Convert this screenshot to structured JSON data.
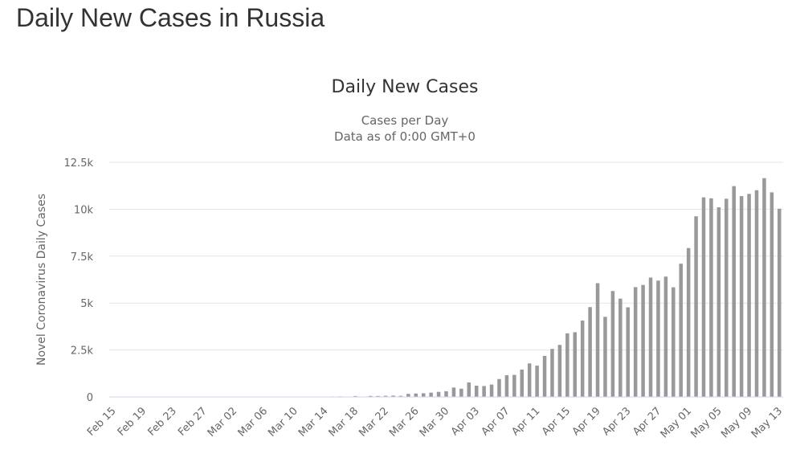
{
  "page": {
    "title": "Daily New Cases in Russia"
  },
  "chart_data": {
    "type": "bar",
    "title": "Daily New Cases",
    "subtitle_lines": [
      "Cases per Day",
      "Data as of 0:00 GMT+0"
    ],
    "xlabel": "",
    "ylabel": "Novel Coronavirus Daily Cases",
    "ylim": [
      0,
      12500
    ],
    "y_ticks": [
      {
        "value": 0,
        "label": "0"
      },
      {
        "value": 2500,
        "label": "2.5k"
      },
      {
        "value": 5000,
        "label": "5k"
      },
      {
        "value": 7500,
        "label": "7.5k"
      },
      {
        "value": 10000,
        "label": "10k"
      },
      {
        "value": 12500,
        "label": "12.5k"
      }
    ],
    "x_tick_labels": [
      "Feb 15",
      "Feb 19",
      "Feb 23",
      "Feb 27",
      "Mar 02",
      "Mar 06",
      "Mar 10",
      "Mar 14",
      "Mar 18",
      "Mar 22",
      "Mar 26",
      "Mar 30",
      "Apr 03",
      "Apr 07",
      "Apr 11",
      "Apr 15",
      "Apr 19",
      "Apr 23",
      "Apr 27",
      "May 01",
      "May 05",
      "May 09",
      "May 13"
    ],
    "x_tick_every": 4,
    "categories": [
      "Feb 15",
      "Feb 16",
      "Feb 17",
      "Feb 18",
      "Feb 19",
      "Feb 20",
      "Feb 21",
      "Feb 22",
      "Feb 23",
      "Feb 24",
      "Feb 25",
      "Feb 26",
      "Feb 27",
      "Feb 28",
      "Feb 29",
      "Mar 01",
      "Mar 02",
      "Mar 03",
      "Mar 04",
      "Mar 05",
      "Mar 06",
      "Mar 07",
      "Mar 08",
      "Mar 09",
      "Mar 10",
      "Mar 11",
      "Mar 12",
      "Mar 13",
      "Mar 14",
      "Mar 15",
      "Mar 16",
      "Mar 17",
      "Mar 18",
      "Mar 19",
      "Mar 20",
      "Mar 21",
      "Mar 22",
      "Mar 23",
      "Mar 24",
      "Mar 25",
      "Mar 26",
      "Mar 27",
      "Mar 28",
      "Mar 29",
      "Mar 30",
      "Mar 31",
      "Apr 01",
      "Apr 02",
      "Apr 03",
      "Apr 04",
      "Apr 05",
      "Apr 06",
      "Apr 07",
      "Apr 08",
      "Apr 09",
      "Apr 10",
      "Apr 11",
      "Apr 12",
      "Apr 13",
      "Apr 14",
      "Apr 15",
      "Apr 16",
      "Apr 17",
      "Apr 18",
      "Apr 19",
      "Apr 20",
      "Apr 21",
      "Apr 22",
      "Apr 23",
      "Apr 24",
      "Apr 25",
      "Apr 26",
      "Apr 27",
      "Apr 28",
      "Apr 29",
      "Apr 30",
      "May 01",
      "May 02",
      "May 03",
      "May 04",
      "May 05",
      "May 06",
      "May 07",
      "May 08",
      "May 09",
      "May 10",
      "May 11",
      "May 12",
      "May 13"
    ],
    "values": [
      0,
      0,
      0,
      0,
      0,
      0,
      0,
      0,
      0,
      0,
      0,
      0,
      0,
      0,
      0,
      0,
      1,
      0,
      0,
      0,
      0,
      0,
      0,
      0,
      7,
      8,
      6,
      14,
      0,
      25,
      29,
      21,
      48,
      0,
      53,
      52,
      61,
      71,
      57,
      163,
      182,
      196,
      228,
      270,
      302,
      501,
      440,
      771,
      601,
      582,
      658,
      954,
      1154,
      1175,
      1459,
      1786,
      1667,
      2186,
      2558,
      2774,
      3388,
      3448,
      4070,
      4785,
      6060,
      4268,
      5642,
      5236,
      4774,
      5849,
      5966,
      6361,
      6198,
      6411,
      5841,
      7099,
      7933,
      9623,
      10633,
      10581,
      10102,
      10559,
      11231,
      10699,
      10817,
      11012,
      11656,
      10899,
      10028
    ],
    "bar_color": "#999999",
    "grid": true,
    "legend": "none"
  }
}
